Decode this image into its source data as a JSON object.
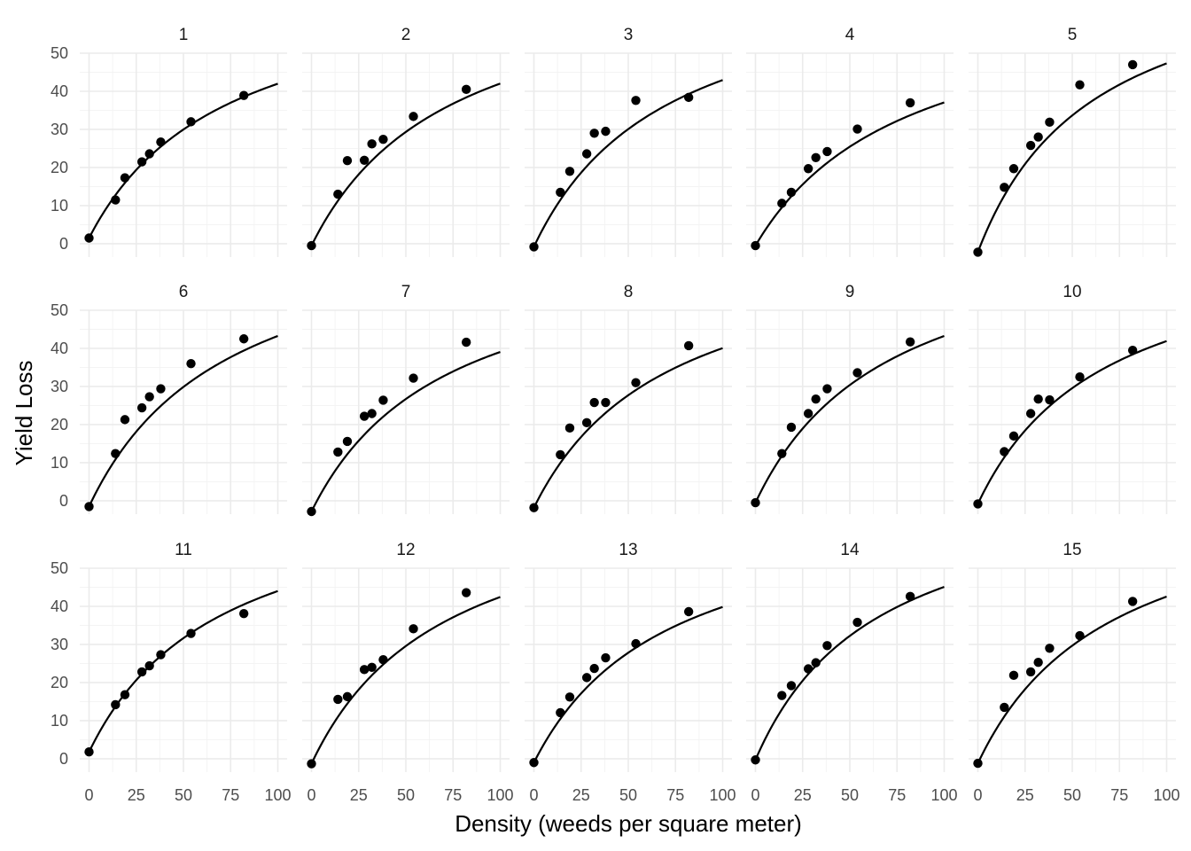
{
  "chart_data": {
    "type": "scatter",
    "layout": "facet_wrap",
    "facet_rows": 3,
    "facet_cols": 5,
    "xlabel": "Density (weeds per square meter)",
    "ylabel": "Yield Loss",
    "xlim": [
      0,
      100
    ],
    "ylim": [
      -3.5,
      50
    ],
    "x_ticks": [
      0,
      25,
      50,
      75,
      100
    ],
    "y_ticks": [
      0,
      10,
      20,
      30,
      40,
      50
    ],
    "grid": true,
    "point_color": "#000000",
    "line_color": "#000000",
    "x": [
      0,
      14,
      19,
      28,
      32,
      38,
      54,
      82
    ],
    "facets": [
      {
        "label": "1",
        "y": [
          1.5,
          11.5,
          17.3,
          21.5,
          23.6,
          26.7,
          32.0,
          38.9
        ],
        "fit": {
          "I": 0.96,
          "A": 70
        }
      },
      {
        "label": "2",
        "y": [
          -0.5,
          13.0,
          21.8,
          21.9,
          26.2,
          27.4,
          33.4,
          40.5
        ],
        "fit": {
          "I": 1.0,
          "A": 74
        }
      },
      {
        "label": "3",
        "y": [
          -0.8,
          13.5,
          19.0,
          23.6,
          29.0,
          29.5,
          37.6,
          38.4
        ],
        "fit": {
          "I": 1.05,
          "A": 75
        }
      },
      {
        "label": "4",
        "y": [
          -0.5,
          10.6,
          13.5,
          19.7,
          22.6,
          24.2,
          30.1,
          37.0
        ],
        "fit": {
          "I": 0.84,
          "A": 68
        }
      },
      {
        "label": "5",
        "y": [
          -2.2,
          14.8,
          19.7,
          25.8,
          28.0,
          31.9,
          41.7,
          47.0
        ],
        "fit": {
          "I": 1.3,
          "A": 80
        }
      },
      {
        "label": "6",
        "y": [
          -1.5,
          12.4,
          21.3,
          24.4,
          27.3,
          29.4,
          36.0,
          42.5
        ],
        "fit": {
          "I": 1.05,
          "A": 78
        }
      },
      {
        "label": "7",
        "y": [
          -2.8,
          12.8,
          15.6,
          22.2,
          22.9,
          26.4,
          32.2,
          41.6
        ],
        "fit": {
          "I": 1.0,
          "A": 72
        }
      },
      {
        "label": "8",
        "y": [
          -1.8,
          12.1,
          19.1,
          20.5,
          25.8,
          25.8,
          31.0,
          40.7
        ],
        "fit": {
          "I": 1.0,
          "A": 72
        }
      },
      {
        "label": "9",
        "y": [
          -0.5,
          12.4,
          19.3,
          22.9,
          26.7,
          29.4,
          33.6,
          41.7
        ],
        "fit": {
          "I": 1.05,
          "A": 75
        }
      },
      {
        "label": "10",
        "y": [
          -0.8,
          12.9,
          17.0,
          22.9,
          26.7,
          26.5,
          32.5,
          39.5
        ],
        "fit": {
          "I": 1.05,
          "A": 72
        }
      },
      {
        "label": "11",
        "y": [
          1.8,
          14.2,
          16.8,
          22.8,
          24.4,
          27.3,
          32.9,
          38.1
        ],
        "fit": {
          "I": 1.02,
          "A": 72
        }
      },
      {
        "label": "12",
        "y": [
          -1.3,
          15.6,
          16.3,
          23.4,
          24.0,
          26.0,
          34.1,
          43.6
        ],
        "fit": {
          "I": 1.05,
          "A": 75
        }
      },
      {
        "label": "13",
        "y": [
          -1.0,
          12.1,
          16.2,
          21.3,
          23.7,
          26.5,
          30.2,
          38.6
        ],
        "fit": {
          "I": 0.98,
          "A": 70
        }
      },
      {
        "label": "14",
        "y": [
          -0.3,
          16.6,
          19.2,
          23.6,
          25.2,
          29.7,
          35.8,
          42.6
        ],
        "fit": {
          "I": 1.15,
          "A": 75
        }
      },
      {
        "label": "15",
        "y": [
          -1.2,
          13.5,
          21.9,
          22.8,
          25.3,
          29.0,
          32.3,
          41.3
        ],
        "fit": {
          "I": 1.05,
          "A": 75
        }
      }
    ]
  }
}
